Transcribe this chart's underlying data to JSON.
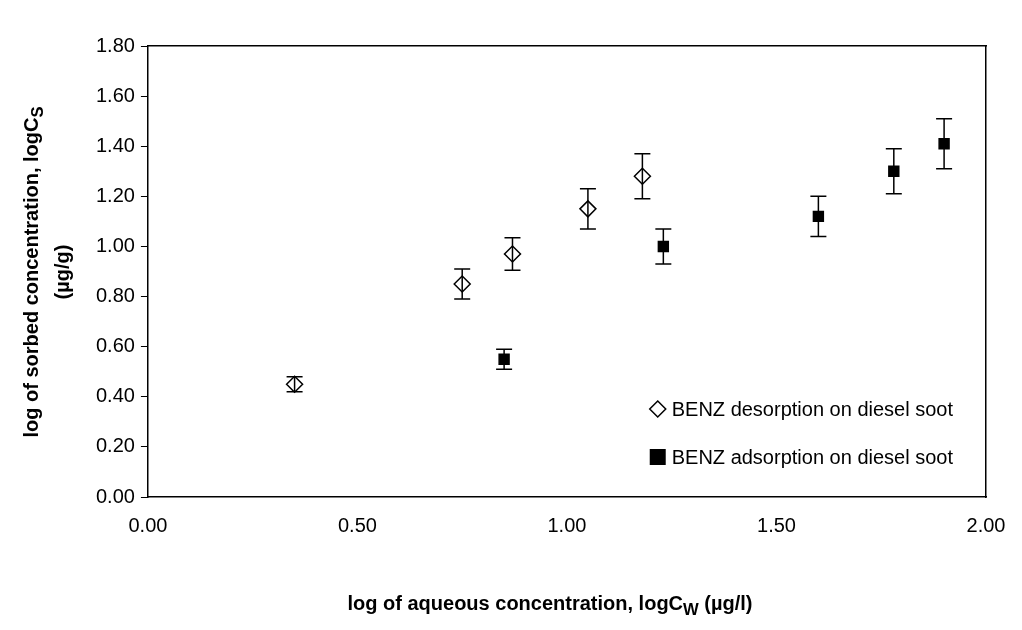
{
  "chart_data": {
    "type": "scatter",
    "xlabel": "log of aqueous concentration, logC$_{W}$ (µg/l)",
    "ylabel": "log of sorbed concentration, logC$_{S}$ (µg/g)",
    "xlim": [
      0,
      2
    ],
    "xticks": [
      {
        "value": 0,
        "label": "0.00"
      },
      {
        "value": 0.5,
        "label": "0.50"
      },
      {
        "value": 1,
        "label": "1.00"
      },
      {
        "value": 1.5,
        "label": "1.50"
      },
      {
        "value": 2,
        "label": "2.00"
      }
    ],
    "ylim": [
      0,
      1.8
    ],
    "yticks": [
      {
        "value": 0,
        "label": "0.00"
      },
      {
        "value": 0.2,
        "label": "0.20"
      },
      {
        "value": 0.4,
        "label": "0.40"
      },
      {
        "value": 0.6,
        "label": "0.60"
      },
      {
        "value": 0.8,
        "label": "0.80"
      },
      {
        "value": 1,
        "label": "1.00"
      },
      {
        "value": 1.2,
        "label": "1.20"
      },
      {
        "value": 1.4,
        "label": "1.40"
      },
      {
        "value": 1.6,
        "label": "1.60"
      },
      {
        "value": 1.8,
        "label": "1.80"
      }
    ],
    "grid": false,
    "legend": "bottom right",
    "series": [
      {
        "name": "BENZ desorption on diesel soot",
        "color": "#000000",
        "marker": "diamond",
        "x": [
          0.35,
          0.75,
          0.87,
          1.05,
          1.18
        ],
        "values": [
          0.45,
          0.85,
          0.97,
          1.15,
          1.28
        ],
        "errors": [
          0.03,
          0.06,
          0.065,
          0.08,
          0.09
        ]
      },
      {
        "name": "BENZ adsorption on diesel soot",
        "color": "#000000",
        "marker": "square",
        "x": [
          0.85,
          1.23,
          1.6,
          1.78,
          1.9
        ],
        "values": [
          0.55,
          1.0,
          1.12,
          1.3,
          1.41
        ],
        "errors": [
          0.04,
          0.07,
          0.08,
          0.09,
          0.1
        ]
      }
    ]
  }
}
